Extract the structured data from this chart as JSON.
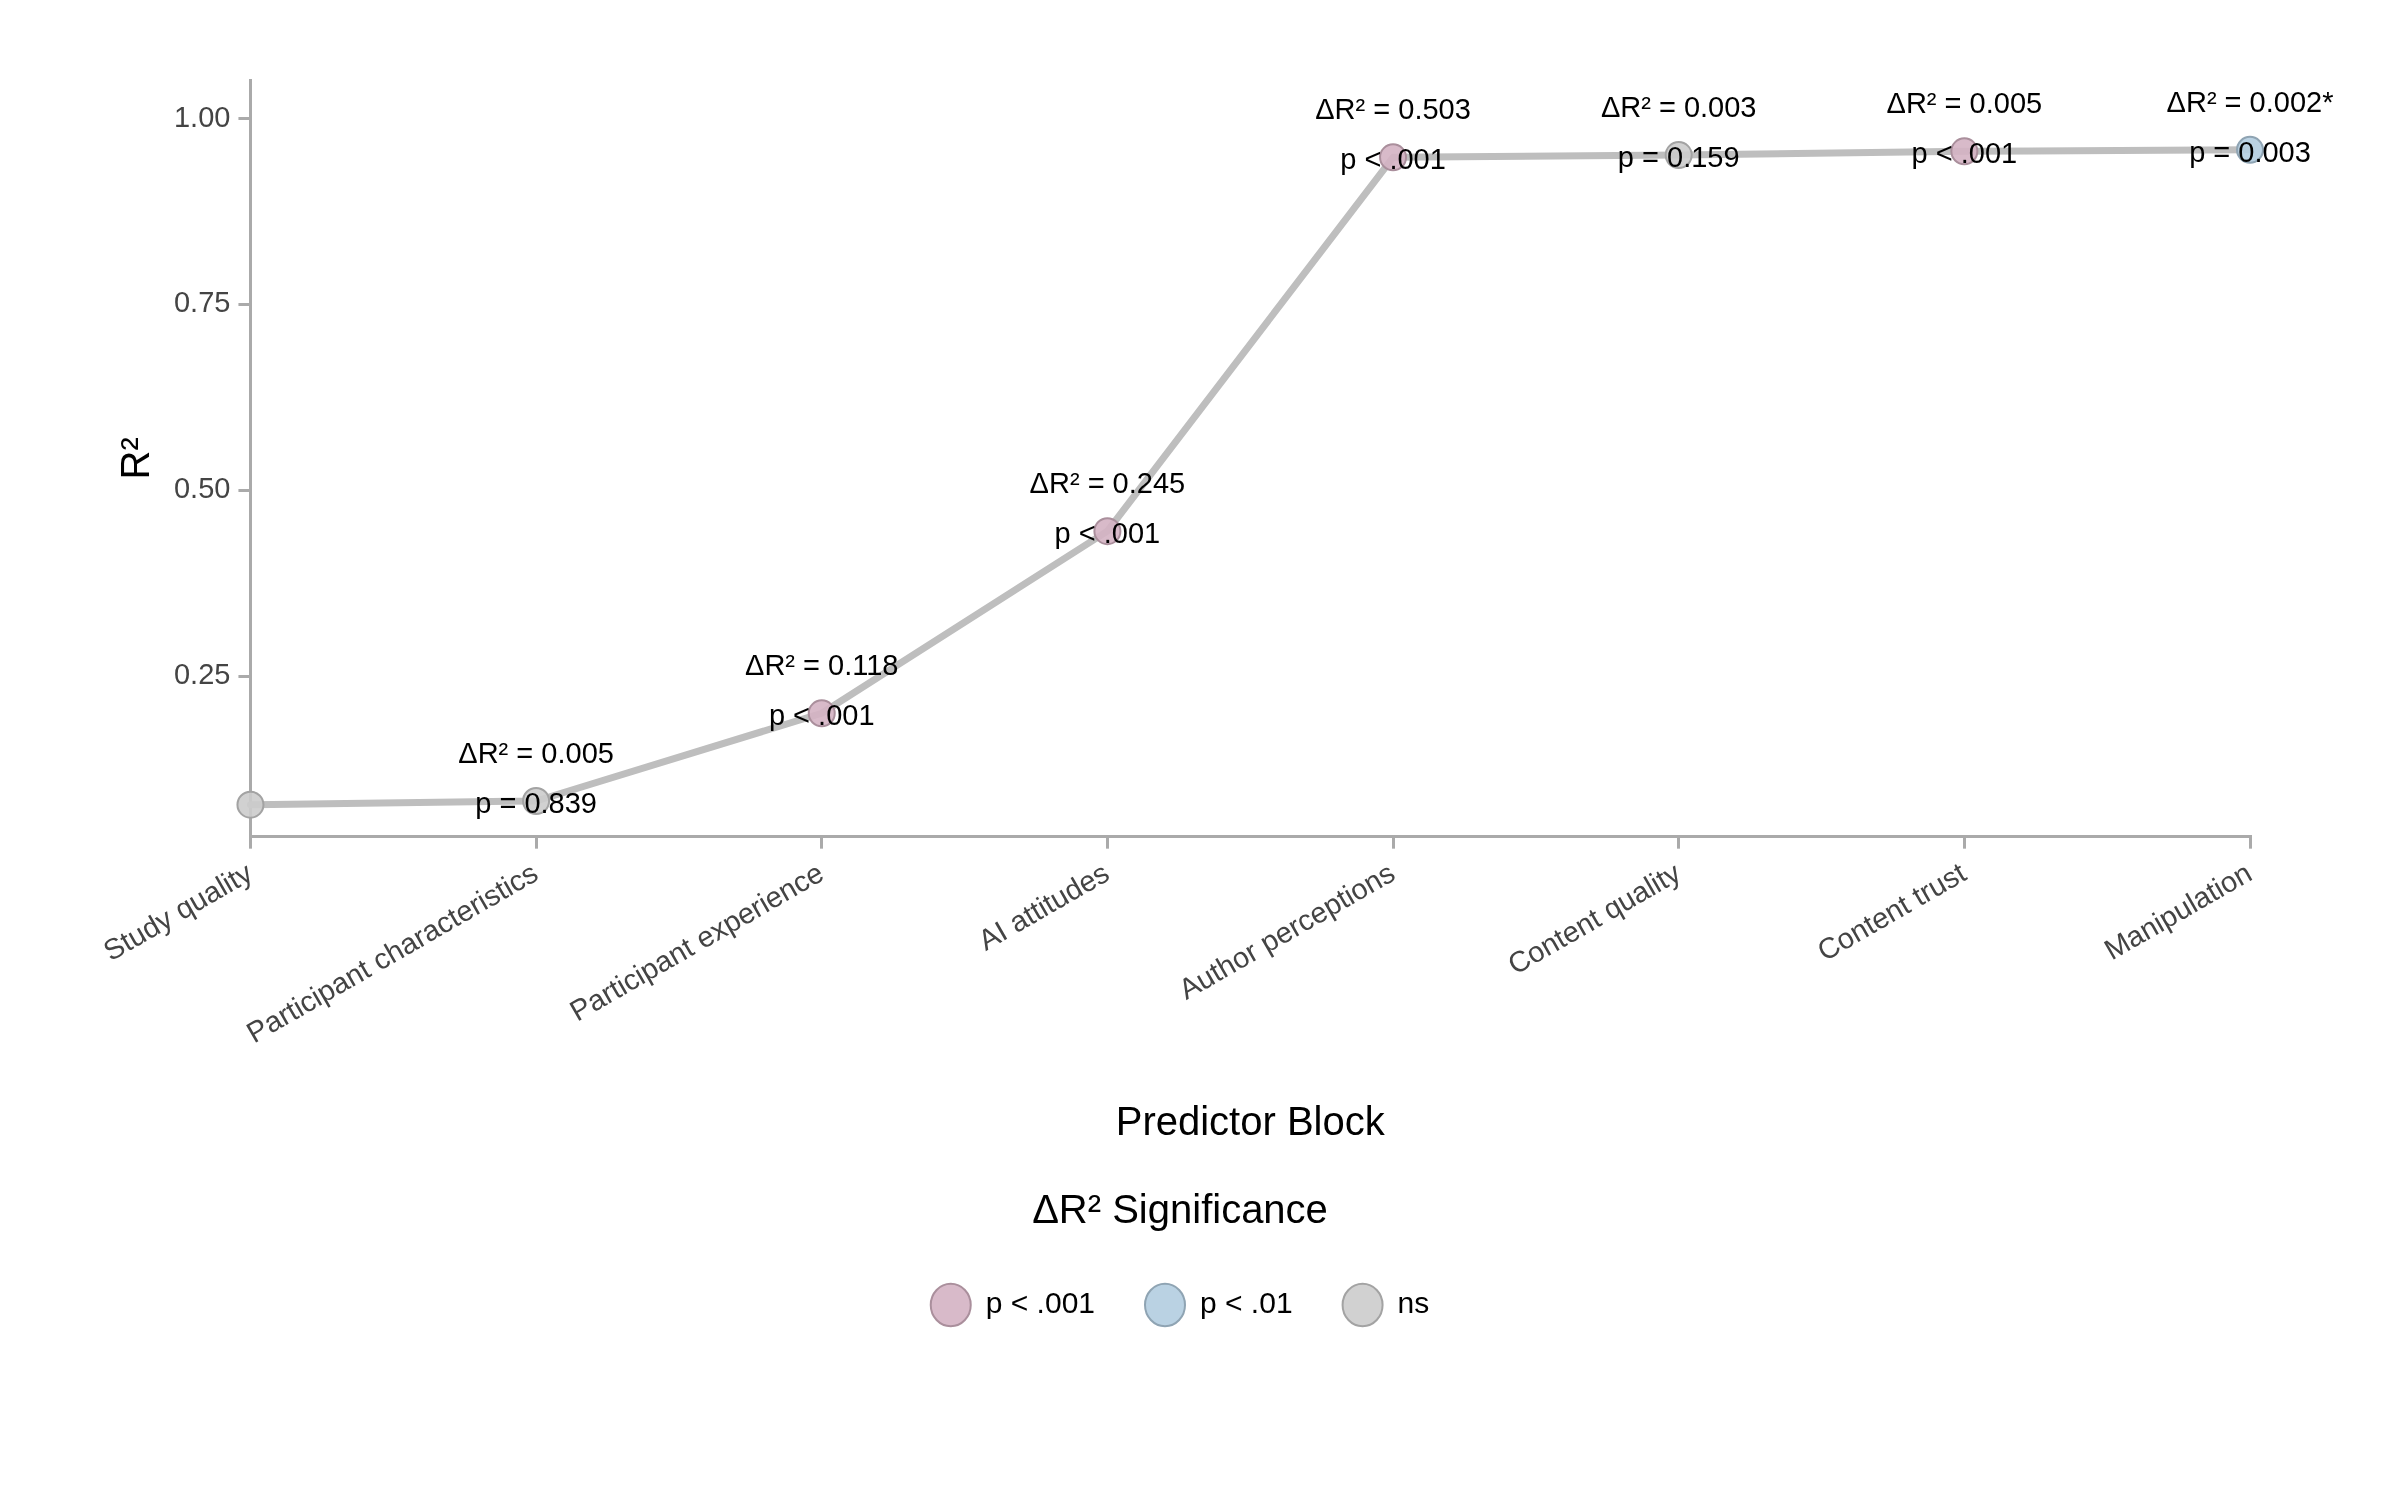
{
  "chart_data": {
    "type": "line",
    "categories": [
      "Study quality",
      "Participant characteristics",
      "Participant experience",
      "AI attitudes",
      "Author perceptions",
      "Content quality",
      "Content trust",
      "Manipulation"
    ],
    "xlabel": "Predictor Block",
    "ylabel": "R²",
    "legend_title": "ΔR² Significance",
    "ylim": [
      0.034,
      1.052
    ],
    "yticks": [
      0.25,
      {
        "value": 0.5,
        "label": "0.50"
      },
      0.75,
      {
        "value": 1,
        "label": "1.00"
      }
    ],
    "grid": false,
    "legend": "bottom",
    "marker": "circle",
    "line_style": "solid",
    "series": [
      {
        "marker": "none",
        "color": "#bebebe",
        "values": [
          0.077,
          0.082,
          0.2,
          0.445,
          0.948,
          0.951,
          0.956,
          0.958
        ]
      },
      {
        "type": "scatter",
        "name": "p < .001",
        "color": "#d4b3c3",
        "x": [
          "Participant experience",
          "AI attitudes",
          "Author perceptions",
          "Content trust"
        ],
        "values": [
          0.2,
          0.445,
          0.948,
          0.956
        ]
      },
      {
        "type": "scatter",
        "name": "p < .01",
        "color": "#b3cde0",
        "x": [
          "Manipulation"
        ],
        "values": [
          0.958
        ]
      },
      {
        "type": "scatter",
        "name": "ns",
        "color": "#cccccc",
        "x": [
          "Study quality",
          "Participant characteristics",
          "Content quality"
        ],
        "values": [
          0.077,
          0.082,
          0.951
        ]
      }
    ],
    "annotations": [
      {
        "text": "ΔR² = 0.005\np = 0.839",
        "x": "Participant characteristics",
        "y": 0.082
      },
      {
        "text": "ΔR² = 0.118\np < .001",
        "x": "Participant experience",
        "y": 0.2
      },
      {
        "text": "ΔR² = 0.245\np < .001",
        "x": "AI attitudes",
        "y": 0.445
      },
      {
        "text": "ΔR² = 0.503\np < .001",
        "x": "Author perceptions",
        "y": 0.948
      },
      {
        "text": "ΔR² = 0.003\np = 0.159",
        "x": "Content quality",
        "y": 0.951
      },
      {
        "text": "ΔR² = 0.005\np < .001",
        "x": "Content trust",
        "y": 0.956
      },
      {
        "text": "ΔR² = 0.002*\np = 0.003",
        "x": "Manipulation",
        "y": 0.958
      }
    ]
  }
}
